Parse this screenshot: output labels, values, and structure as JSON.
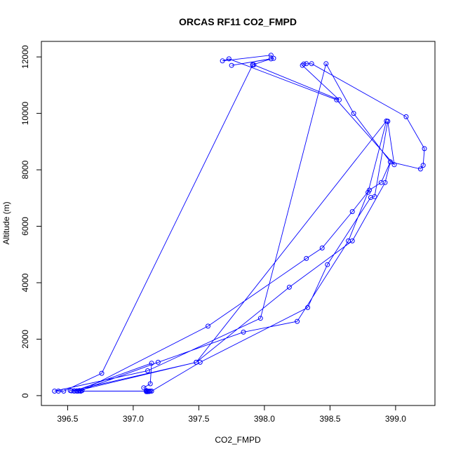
{
  "chart_data": {
    "type": "line",
    "title": "ORCAS RF11 CO2_FMPD",
    "xlabel": "CO2_FMPD",
    "ylabel": "Altitude (m)",
    "xlim": [
      396.3,
      399.3
    ],
    "ylim": [
      -350,
      12550
    ],
    "xticks": [
      396.5,
      397.0,
      397.5,
      398.0,
      398.5,
      399.0
    ],
    "xtick_labels": [
      "396.5",
      "397.0",
      "397.5",
      "398.0",
      "398.5",
      "399.0"
    ],
    "yticks": [
      0,
      2000,
      4000,
      6000,
      8000,
      10000,
      12000
    ],
    "ytick_labels": [
      "0",
      "2000",
      "4000",
      "6000",
      "8000",
      "10000",
      "12000"
    ],
    "grid": false,
    "marker": "open-circle",
    "color": "#0000ff",
    "series": [
      {
        "x": [
          397.12,
          397.1,
          397.1,
          397.13,
          397.12,
          397.11,
          397.12,
          397.1,
          397.11,
          397.12,
          397.12,
          397.12,
          397.12,
          397.12,
          397.12,
          397.12,
          397.1,
          397.08,
          397.13,
          397.14,
          396.55,
          396.52,
          396.6,
          397.14,
          397.51,
          398.33,
          398.48,
          398.81,
          398.84,
          398.94,
          398.94,
          398.99,
          398.55,
          397.73,
          397.68,
          398.05,
          398.07,
          397.75,
          398.05,
          397.91,
          397.92,
          398.57,
          398.29,
          398.3,
          398.32,
          398.36,
          399.08,
          399.22,
          399.21,
          399.19,
          398.96,
          398.89,
          398.8,
          398.67,
          398.44,
          398.32,
          397.57,
          396.61,
          396.58,
          396.59,
          396.55,
          396.57,
          396.6,
          396.53,
          397.48,
          398.93,
          398.79,
          398.64,
          398.25,
          397.84,
          397.19,
          396.59,
          396.57,
          397.48,
          398.19,
          398.67,
          398.92,
          398.96,
          398.68,
          398.47,
          397.97,
          397.11,
          396.4,
          396.43,
          396.47,
          396.76,
          397.91
        ],
        "y": [
          150,
          180,
          140,
          160,
          150,
          140,
          150,
          170,
          160,
          150,
          150,
          150,
          150,
          150,
          150,
          150,
          170,
          280,
          420,
          1150,
          160,
          180,
          160,
          160,
          1180,
          3120,
          4640,
          7020,
          7050,
          9720,
          9720,
          8180,
          10480,
          11930,
          11860,
          12060,
          11950,
          11700,
          11930,
          11720,
          11720,
          10480,
          11700,
          11750,
          11760,
          11760,
          9880,
          8750,
          8160,
          8030,
          8280,
          7550,
          7280,
          6520,
          5230,
          4860,
          2460,
          180,
          160,
          180,
          170,
          160,
          160,
          170,
          1180,
          9730,
          7200,
          5480,
          2630,
          2250,
          1180,
          170,
          170,
          1180,
          3840,
          5480,
          7550,
          8280,
          10000,
          11760,
          2740,
          880,
          160,
          160,
          160,
          790,
          11720
        ]
      }
    ]
  }
}
